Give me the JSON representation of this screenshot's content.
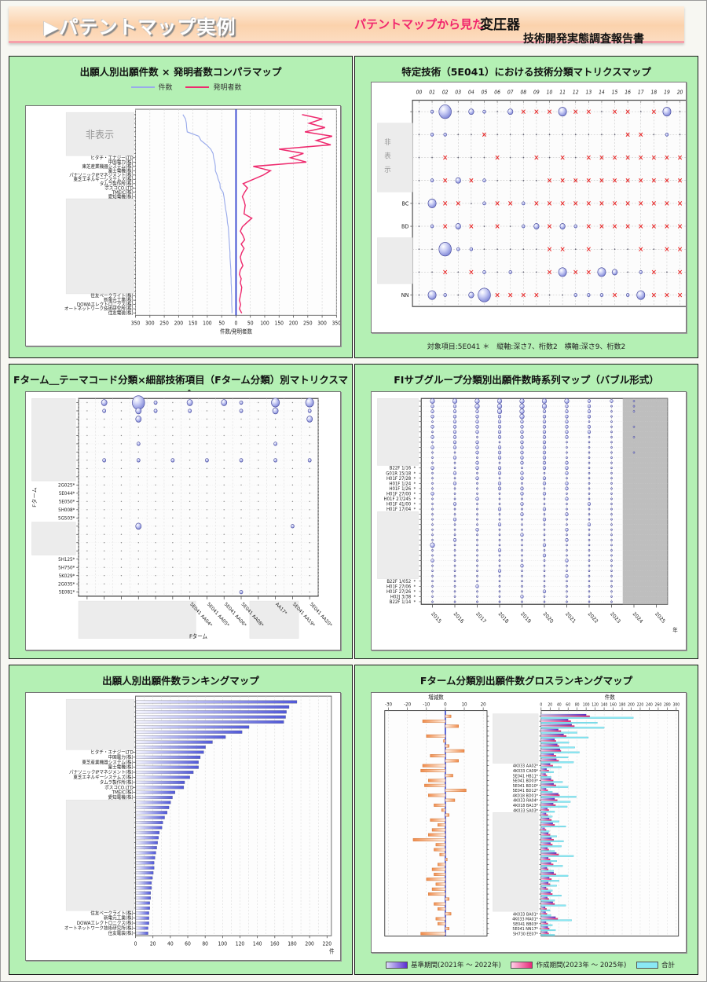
{
  "page": {
    "header": {
      "banner_title": "▶パテントマップ実例",
      "subtitle_accent": "パテントマップから見た",
      "subject": "変圧器",
      "report_title": "技術開発実態調査報告書",
      "accent_color": "#f1256d"
    }
  },
  "chart_data": [
    {
      "id": "compare",
      "type": "line",
      "title": "出願人別出願件数 × 発明者数コンパラマップ",
      "xlabel": "件数/発明者数",
      "x_ticks": [
        -350,
        -300,
        -250,
        -200,
        -150,
        -100,
        -50,
        0,
        50,
        100,
        150,
        200,
        250,
        300,
        350
      ],
      "hidden_label": "非表示",
      "hidden_box_rows": [
        [
          0,
          9
        ],
        [
          20,
          41
        ]
      ],
      "categories": [
        "",
        "",
        "",
        "",
        "",
        "",
        "",
        "",
        "",
        "",
        "ヒタチ・エナジーLTD",
        "中国電力(株)",
        "東芝産業機器システム(株)",
        "富士電機(株)",
        "パナソニックIPマネジメント(株)",
        "東芝エネルギーシステムズ(株)",
        "タムラ製作所(株)",
        "ポスコCO.LTD",
        "TMEIC(株)",
        "愛知電機(株)",
        "",
        "",
        "",
        "",
        "",
        "",
        "",
        "",
        "",
        "",
        "",
        "",
        "",
        "",
        "",
        "",
        "",
        "",
        "",
        "",
        "",
        "",
        "住友ベークライト(株)",
        "新電元工業(株)",
        "DOWAエレクトロニクス(株)",
        "オートネットワーク技術研究所(株)",
        "住友電装(株)"
      ],
      "series": [
        {
          "name": "件数",
          "color": "#99aaeb",
          "values": [
            185,
            176,
            173,
            172,
            170,
            130,
            122,
            103,
            88,
            80,
            78,
            74,
            72,
            72,
            66,
            62,
            56,
            55,
            45,
            42,
            40,
            38,
            36,
            33,
            31,
            30,
            27,
            26,
            25,
            24,
            23,
            22,
            21,
            21,
            20,
            19,
            18,
            18,
            17,
            17,
            16,
            16,
            15,
            15,
            15,
            14,
            14
          ]
        },
        {
          "name": "発明者数",
          "color": "#ee2a6e",
          "values": [
            230,
            300,
            255,
            310,
            240,
            335,
            280,
            330,
            150,
            235,
            190,
            245,
            60,
            120,
            95,
            60,
            25,
            40,
            30,
            22,
            28,
            32,
            30,
            28,
            55,
            38,
            22,
            15,
            24,
            30,
            18,
            28,
            20,
            15,
            18,
            24,
            15,
            12,
            18,
            15,
            20,
            18,
            15,
            12,
            16,
            12,
            20
          ]
        }
      ],
      "zero_line_color": "#2233cc"
    },
    {
      "id": "matrix5e041",
      "type": "heatmap",
      "title": "特定技術（5E041）における技術分類マトリクスマップ",
      "footnote": "対象項目:5E041 ＊　縦軸:深さ7、桁数2　横軸:深さ9、桁数2",
      "x_labels": [
        "00",
        "01",
        "02",
        "03",
        "04",
        "05",
        "06",
        "07",
        "08",
        "09",
        "10",
        "11",
        "12",
        "13",
        "14",
        "15",
        "16",
        "17",
        "18",
        "19",
        "20"
      ],
      "y_labels": [
        "",
        "",
        "",
        "",
        "BC",
        "BD",
        "",
        "",
        "NN"
      ],
      "hidden_label": "非表示",
      "hidden_box_rows": [
        [
          1,
          3
        ],
        [
          6,
          7
        ]
      ],
      "rows": [
        ".14.21.2xxx3xx.xx.x3.",
        ".11..x..........xx.1.",
        "..x...x..x.x.xxxxxxxx",
        ".1x2x1....xxxxxxxxxxx",
        ".3xx.1xx1xxxxxxxxxxxx",
        ".1x2x.x.12x21xxxxxxxx",
        "..411.....xx.x...x.xx",
        "..x.x1.1..x3xx32.1x.x",
        ".31.24xxxx..111x13xxx"
      ],
      "bubble_color": "#7c84d6",
      "x_mark_color": "#e82020"
    },
    {
      "id": "ftermMatrix",
      "type": "heatmap",
      "title": "Fターム＿テーマコード分類×細部技術項目（Fターム分類）別マトリクスマップ",
      "ylabel": "Fターム",
      "xlabel": "Fターム",
      "x_labels": [
        "",
        "",
        "",
        "",
        "",
        "",
        "5E041 AA04*",
        "5E041 AA05*",
        "5E041 AA06*",
        "5E041 AA08*",
        "",
        "AA17*",
        "5E041 AA19*",
        "5E041 AA20*"
      ],
      "y_labels": [
        "",
        "",
        "",
        "",
        "",
        "",
        "",
        "",
        "",
        "",
        "2G025*",
        "5E044*",
        "5E050*",
        "5H008*",
        "5G503*",
        "",
        "",
        "",
        "",
        "5H125*",
        "5H750*",
        "5K029*",
        "2G035*",
        "5E081*"
      ],
      "hidden_box_rows": [
        [
          0,
          9
        ],
        [
          15,
          18
        ]
      ],
      "hidden_box_cols": [
        [
          0,
          5
        ],
        [
          10,
          11
        ]
      ],
      "rows": [
        ".2.41.2.21.3.3",
        ".1.21.1..1.2.1",
        "...2.........2",
        "..............",
        "..............",
        "...1.......1..",
        "..............",
        ".1.1.1.1.1.1.1",
        "..............",
        "..............",
        "..............",
        "..............",
        "..............",
        "..............",
        "..............",
        "...2........1.",
        "..............",
        "..............",
        "..............",
        "..............",
        "..............",
        "..............",
        "..............",
        ".........1...."
      ],
      "bubble_color": "#7c84d6"
    },
    {
      "id": "fiTimeseries",
      "type": "scatter",
      "title": "FIサブグループ分類別出願件数時系列マップ（バブル形式）",
      "xlabel": "年",
      "years": [
        "2015",
        "2016",
        "2017",
        "2018",
        "2019",
        "2020",
        "2021",
        "2022",
        "2023",
        "2024",
        "2025"
      ],
      "shade_from_year_index": 9,
      "shade_color": "#b3b3b3",
      "y_labels": [
        "",
        "",
        "",
        "",
        "",
        "",
        "",
        "",
        "",
        "",
        "",
        "",
        "",
        "B22F 1/16",
        "G01R 15/18",
        "H01F 27/28",
        "H01F 1/24",
        "H01F 1/26",
        "H01F 27/00",
        "H01F 27/245",
        "H01F 41/00",
        "H01F 17/04",
        "",
        "",
        "",
        "",
        "",
        "",
        "",
        "",
        "",
        "",
        "",
        "",
        "",
        "B22F 1/052",
        "H01F 27/06",
        "H01F 27/26",
        "H02J 3/38",
        "B22F 1/14"
      ],
      "hidden_box_rows": [
        [
          0,
          12
        ],
        [
          22,
          34
        ]
      ],
      "rows": [
        "33333332210",
        "22333322110",
        "22233222110",
        "22223222100",
        "12222221100",
        "22222222110",
        "12222222100",
        "22122221110",
        "12212211100",
        "22222211100",
        "11222211110",
        "12122211100",
        "11212221100",
        "21221221100",
        "12122121100",
        "11212211100",
        "12121221100",
        "11122121100",
        "21112211100",
        "11211121100",
        "12112112100",
        "11121211100",
        "11112121100",
        "12111211100",
        "11121112100",
        "11211121100",
        "11112111100",
        "12111121100",
        "31111211100",
        "11121111100",
        "11111211100",
        "21111121100",
        "11112111100",
        "11121111100",
        "11111121100",
        "11111111100",
        "11211111100",
        "11111211100",
        "11112111100",
        "11111111100"
      ],
      "bubble_color": "#7c84d6"
    },
    {
      "id": "ranking",
      "type": "bar",
      "title": "出願人別出願件数ランキングマップ",
      "xlabel": "件",
      "x_ticks": [
        0,
        20,
        40,
        60,
        80,
        100,
        120,
        140,
        160,
        180,
        200,
        220
      ],
      "hidden_box_rows": [
        [
          0,
          9
        ],
        [
          20,
          41
        ]
      ],
      "categories": [
        "",
        "",
        "",
        "",
        "",
        "",
        "",
        "",
        "",
        "",
        "ヒタチ・エナジーLTD",
        "中国電力(株)",
        "東芝産業機器システム(株)",
        "富士電機(株)",
        "パナソニックIPマネジメント(株)",
        "東芝エネルギーシステムズ(株)",
        "タムラ製作所(株)",
        "ポスコCO.LTD",
        "TMEIC(株)",
        "愛知電機(株)",
        "",
        "",
        "",
        "",
        "",
        "",
        "",
        "",
        "",
        "",
        "",
        "",
        "",
        "",
        "",
        "",
        "",
        "",
        "",
        "",
        "",
        "",
        "住友ベークライト(株)",
        "新電元工業(株)",
        "DOWAエレクトロニクス(株)",
        "オートネットワーク技術研究所(株)",
        "住友電装(株)"
      ],
      "values": [
        185,
        176,
        173,
        172,
        170,
        130,
        122,
        103,
        88,
        80,
        78,
        74,
        72,
        72,
        66,
        62,
        56,
        55,
        45,
        42,
        40,
        38,
        36,
        33,
        31,
        30,
        27,
        26,
        25,
        24,
        23,
        22,
        21,
        21,
        20,
        19,
        18,
        18,
        17,
        17,
        16,
        16,
        15,
        15,
        15,
        14,
        14
      ],
      "bar_color_from": "#f6f6ff",
      "bar_color_to": "#5058d8"
    },
    {
      "id": "gross",
      "type": "bar",
      "title": "Fターム分類別出願件数グロスランキングマップ",
      "left_title": "増減数",
      "right_title": "件数",
      "left_x_ticks": [
        -30,
        -20,
        -10,
        0,
        10,
        20
      ],
      "right_x_ticks": [
        0,
        20,
        40,
        60,
        80,
        100,
        120,
        140,
        160,
        180,
        200,
        220,
        240,
        260,
        280,
        300
      ],
      "hidden_box_rows": [
        [
          0,
          9
        ],
        [
          20,
          39
        ]
      ],
      "categories": [
        "",
        "",
        "",
        "",
        "",
        "",
        "",
        "",
        "",
        "",
        "4K033 AA02*",
        "4K033 CA09*",
        "5E041 HB11*",
        "5E041 BD03*",
        "5E041 BD10*",
        "5E041 BD12*",
        "4K018 BD01*",
        "4K033 RA04*",
        "4K018 BA13*",
        "4K033 SA03*",
        "",
        "",
        "",
        "",
        "",
        "",
        "",
        "",
        "",
        "",
        "",
        "",
        "",
        "",
        "",
        "",
        "",
        "",
        "",
        "",
        "4K033 BA01*",
        "4K033 MA01*",
        "5E041 BB03*",
        "5E041 NN17*",
        "5H730 EE07*"
      ],
      "delta_values": [
        3,
        -12,
        7,
        0,
        -10,
        -1,
        2,
        10,
        -8,
        7,
        -12,
        -13,
        4,
        -9,
        -11,
        11,
        -9,
        5,
        -6,
        -2,
        2,
        -8,
        -4,
        -7,
        -9,
        -17,
        -5,
        -6,
        -3,
        1,
        -4,
        -7,
        -6,
        -10,
        -5,
        -7,
        -9,
        2,
        -6,
        -4,
        3,
        -5,
        -4,
        2,
        -13
      ],
      "series": [
        {
          "name": "基準期間(2021年 ～ 2022年)",
          "color_from": "#dadaf8",
          "color_to": "#5b2fd0",
          "values": [
            100,
            60,
            68,
            38,
            50,
            30,
            36,
            42,
            28,
            34,
            20,
            12,
            10,
            22,
            28,
            11,
            38,
            30,
            27,
            14,
            11,
            18,
            26,
            8,
            16,
            23,
            21,
            14,
            34,
            16,
            22,
            13,
            28,
            18,
            16,
            11,
            21,
            14,
            26,
            9,
            10,
            32,
            11,
            15,
            14
          ]
        },
        {
          "name": "作成期間(2023年 ～ 2025年)",
          "color_from": "#ffd0e8",
          "color_to": "#e82878",
          "values": [
            108,
            66,
            74,
            44,
            56,
            33,
            40,
            44,
            33,
            39,
            26,
            17,
            13,
            27,
            33,
            15,
            41,
            36,
            32,
            17,
            15,
            23,
            30,
            11,
            20,
            28,
            25,
            17,
            39,
            20,
            27,
            16,
            33,
            23,
            20,
            15,
            25,
            17,
            30,
            12,
            13,
            37,
            15,
            18,
            17
          ]
        },
        {
          "name": "合計",
          "color_from": "#8ae8f4",
          "color_to": "#8ae8f4",
          "values": [
            205,
            125,
            140,
            80,
            105,
            62,
            75,
            85,
            60,
            72,
            45,
            28,
            22,
            48,
            60,
            25,
            78,
            65,
            58,
            30,
            25,
            40,
            55,
            18,
            35,
            50,
            45,
            30,
            72,
            35,
            48,
            28,
            60,
            40,
            35,
            25,
            45,
            30,
            55,
            20,
            22,
            68,
            25,
            32,
            30
          ]
        }
      ],
      "delta_bar_color_from": "#f08c4c",
      "delta_bar_color_to": "#fff4ea",
      "zero_line_color": "#2233cc"
    }
  ]
}
